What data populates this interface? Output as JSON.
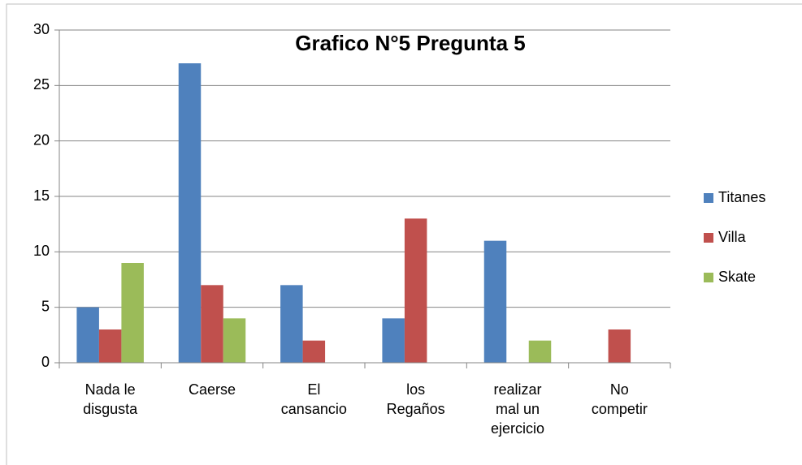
{
  "chart_data": {
    "type": "bar",
    "title": "Grafico N°5 Pregunta 5",
    "categories": [
      "Nada le disgusta",
      "Caerse",
      "El cansancio",
      "los Regaños",
      "realizar mal un ejercicio",
      "No competir"
    ],
    "series": [
      {
        "name": "Titanes",
        "color": "#4f81bd",
        "values": [
          5,
          27,
          7,
          4,
          11,
          0
        ]
      },
      {
        "name": "Villa",
        "color": "#c0504d",
        "values": [
          3,
          7,
          2,
          13,
          0,
          3
        ]
      },
      {
        "name": "Skate",
        "color": "#9bbb59",
        "values": [
          9,
          4,
          0,
          0,
          2,
          0
        ]
      }
    ],
    "ylim": [
      0,
      30
    ],
    "yticks": [
      0,
      5,
      10,
      15,
      20,
      25,
      30
    ],
    "grid": true,
    "legend": "right"
  }
}
